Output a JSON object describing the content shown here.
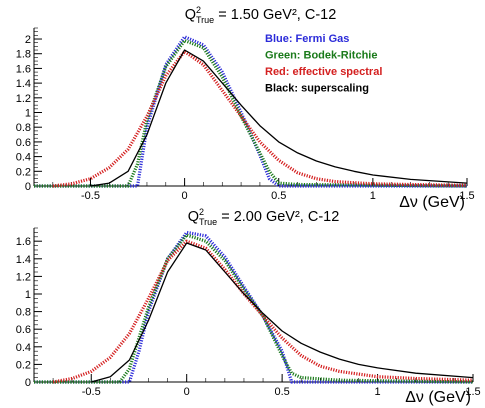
{
  "chart_data": [
    {
      "type": "line",
      "title": {
        "main": "Q",
        "sub": "True",
        "sup": "2",
        "rest": " = 1.50 GeV², C-12"
      },
      "xlabel": "Δν (GeV)",
      "ylabel": "",
      "xlim": [
        -0.8,
        1.5
      ],
      "ylim": [
        0,
        2.15
      ],
      "xticks": [
        {
          "v": -0.5,
          "label": "-0.5"
        },
        {
          "v": 0,
          "label": "0"
        },
        {
          "v": 0.5,
          "label": "0.5"
        },
        {
          "v": 1,
          "label": "1"
        },
        {
          "v": 1.5,
          "label": "1.5"
        }
      ],
      "yticks": [
        {
          "v": 0,
          "label": "0"
        },
        {
          "v": 0.2,
          "label": "0.2"
        },
        {
          "v": 0.4,
          "label": "0.4"
        },
        {
          "v": 0.6,
          "label": "0.6"
        },
        {
          "v": 0.8,
          "label": "0.8"
        },
        {
          "v": 1.0,
          "label": "1"
        },
        {
          "v": 1.2,
          "label": "1.2"
        },
        {
          "v": 1.4,
          "label": "1.4"
        },
        {
          "v": 1.6,
          "label": "1.6"
        },
        {
          "v": 1.8,
          "label": "1.8"
        },
        {
          "v": 2.0,
          "label": "2"
        }
      ],
      "legend": [
        {
          "text": "Blue:  Fermi Gas",
          "color": "#2b2bd9"
        },
        {
          "text": "Green:  Bodek-Ritchie",
          "color": "#1a7a1a"
        },
        {
          "text": "Red:  effective spectral",
          "color": "#d42020"
        },
        {
          "text": "Black:  superscaling",
          "color": "#000000"
        }
      ],
      "series": [
        {
          "color": "#2b2bd9",
          "marker": "dots",
          "x": [
            -0.8,
            -0.25,
            -0.2,
            -0.1,
            0.0,
            0.1,
            0.2,
            0.3,
            0.4,
            0.45,
            0.5,
            1.5
          ],
          "y": [
            0,
            0,
            0.8,
            1.65,
            2.03,
            1.92,
            1.55,
            1.0,
            0.42,
            0.1,
            0,
            0
          ]
        },
        {
          "color": "#1a7a1a",
          "marker": "dots",
          "x": [
            -0.8,
            -0.3,
            -0.25,
            -0.2,
            -0.1,
            0.0,
            0.1,
            0.2,
            0.3,
            0.4,
            0.45,
            0.5,
            0.6,
            1.5
          ],
          "y": [
            0,
            0,
            0.3,
            0.9,
            1.62,
            1.98,
            1.88,
            1.48,
            0.95,
            0.45,
            0.2,
            0.04,
            0.02,
            0
          ]
        },
        {
          "color": "#d42020",
          "marker": "dots",
          "x": [
            -0.7,
            -0.6,
            -0.5,
            -0.4,
            -0.3,
            -0.2,
            -0.1,
            0.0,
            0.1,
            0.2,
            0.3,
            0.4,
            0.5,
            0.6,
            0.7,
            0.8,
            1.0,
            1.2,
            1.5
          ],
          "y": [
            0.0,
            0.03,
            0.1,
            0.25,
            0.5,
            0.95,
            1.5,
            1.83,
            1.65,
            1.3,
            0.95,
            0.6,
            0.35,
            0.18,
            0.1,
            0.06,
            0.03,
            0.02,
            0.01
          ]
        },
        {
          "color": "#000000",
          "marker": "line",
          "x": [
            -0.5,
            -0.4,
            -0.3,
            -0.2,
            -0.1,
            0.0,
            0.1,
            0.2,
            0.3,
            0.4,
            0.5,
            0.6,
            0.7,
            0.8,
            0.9,
            1.0,
            1.2,
            1.5
          ],
          "y": [
            0.0,
            0.04,
            0.2,
            0.7,
            1.4,
            1.85,
            1.7,
            1.4,
            1.1,
            0.82,
            0.6,
            0.45,
            0.34,
            0.26,
            0.2,
            0.15,
            0.09,
            0.04
          ]
        }
      ]
    },
    {
      "type": "line",
      "title": {
        "main": "Q",
        "sub": "True",
        "sup": "2",
        "rest": " = 2.00 GeV², C-12"
      },
      "xlabel": "Δν (GeV)",
      "ylabel": "",
      "xlim": [
        -0.8,
        1.5
      ],
      "ylim": [
        0,
        1.75
      ],
      "xticks": [
        {
          "v": -0.5,
          "label": "-0.5"
        },
        {
          "v": 0,
          "label": "0"
        },
        {
          "v": 0.5,
          "label": "0.5"
        },
        {
          "v": 1,
          "label": "1"
        },
        {
          "v": 1.5,
          "label": "1.5"
        }
      ],
      "yticks": [
        {
          "v": 0,
          "label": "0"
        },
        {
          "v": 0.2,
          "label": "0.2"
        },
        {
          "v": 0.4,
          "label": "0.4"
        },
        {
          "v": 0.6,
          "label": "0.6"
        },
        {
          "v": 0.8,
          "label": "0.8"
        },
        {
          "v": 1.0,
          "label": "1"
        },
        {
          "v": 1.2,
          "label": "1.2"
        },
        {
          "v": 1.4,
          "label": "1.4"
        },
        {
          "v": 1.6,
          "label": "1.6"
        }
      ],
      "legend": [],
      "series": [
        {
          "color": "#2b2bd9",
          "marker": "dots",
          "x": [
            -0.8,
            -0.3,
            -0.25,
            -0.2,
            -0.1,
            0.0,
            0.1,
            0.2,
            0.3,
            0.4,
            0.5,
            0.55,
            1.5
          ],
          "y": [
            0,
            0,
            0.35,
            0.8,
            1.4,
            1.7,
            1.66,
            1.42,
            1.08,
            0.75,
            0.35,
            0,
            0
          ]
        },
        {
          "color": "#1a7a1a",
          "marker": "dots",
          "x": [
            -0.8,
            -0.35,
            -0.3,
            -0.2,
            -0.1,
            0.0,
            0.1,
            0.2,
            0.3,
            0.4,
            0.5,
            0.55,
            0.6,
            0.8,
            1.5
          ],
          "y": [
            0,
            0,
            0.15,
            0.85,
            1.4,
            1.67,
            1.6,
            1.38,
            1.05,
            0.75,
            0.3,
            0.1,
            0.05,
            0.02,
            0
          ]
        },
        {
          "color": "#d42020",
          "marker": "dots",
          "x": [
            -0.7,
            -0.6,
            -0.5,
            -0.4,
            -0.3,
            -0.2,
            -0.1,
            0.0,
            0.1,
            0.2,
            0.3,
            0.4,
            0.5,
            0.6,
            0.7,
            0.8,
            1.0,
            1.2,
            1.5
          ],
          "y": [
            0.0,
            0.04,
            0.12,
            0.28,
            0.55,
            0.95,
            1.38,
            1.6,
            1.52,
            1.28,
            1.0,
            0.75,
            0.5,
            0.3,
            0.18,
            0.12,
            0.06,
            0.04,
            0.02
          ]
        },
        {
          "color": "#000000",
          "marker": "line",
          "x": [
            -0.5,
            -0.4,
            -0.3,
            -0.2,
            -0.1,
            0.0,
            0.1,
            0.2,
            0.3,
            0.4,
            0.5,
            0.6,
            0.7,
            0.8,
            0.9,
            1.0,
            1.2,
            1.5
          ],
          "y": [
            0.0,
            0.06,
            0.25,
            0.7,
            1.25,
            1.58,
            1.5,
            1.25,
            1.0,
            0.78,
            0.58,
            0.44,
            0.34,
            0.26,
            0.2,
            0.16,
            0.1,
            0.05
          ]
        }
      ]
    }
  ]
}
